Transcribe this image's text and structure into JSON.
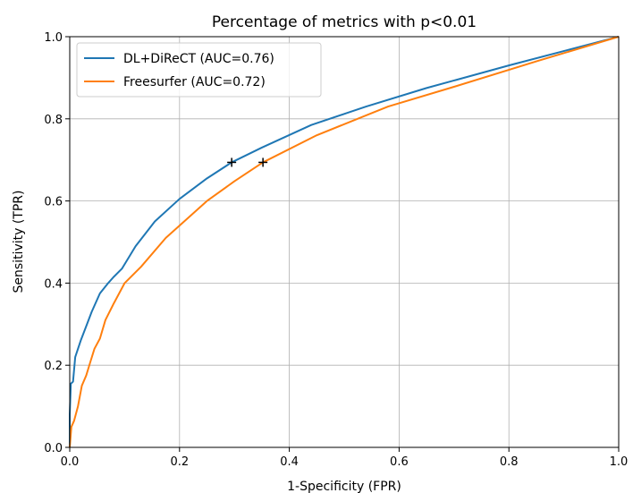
{
  "chart_data": {
    "type": "line",
    "title": "Percentage of metrics with p<0.01",
    "xlabel": "1-Specificity (FPR)",
    "ylabel": "Sensitivity (TPR)",
    "xlim": [
      0,
      1
    ],
    "ylim": [
      0,
      1
    ],
    "grid": true,
    "legend_position": "top-left",
    "x_ticks": [
      {
        "value": 0.0,
        "label": "0.0"
      },
      {
        "value": 0.2,
        "label": "0.2"
      },
      {
        "value": 0.4,
        "label": "0.4"
      },
      {
        "value": 0.6,
        "label": "0.6"
      },
      {
        "value": 0.8,
        "label": "0.8"
      },
      {
        "value": 1.0,
        "label": "1.0"
      }
    ],
    "y_ticks": [
      {
        "value": 0.0,
        "label": "0.0"
      },
      {
        "value": 0.2,
        "label": "0.2"
      },
      {
        "value": 0.4,
        "label": "0.4"
      },
      {
        "value": 0.6,
        "label": "0.6"
      },
      {
        "value": 0.8,
        "label": "0.8"
      },
      {
        "value": 1.0,
        "label": "1.0"
      }
    ],
    "series": [
      {
        "name": "DL+DiReCT (AUC=0.76)",
        "color": "#1f77b4",
        "points": [
          [
            0.0,
            0.0
          ],
          [
            0.0,
            0.08
          ],
          [
            0.002,
            0.155
          ],
          [
            0.006,
            0.16
          ],
          [
            0.01,
            0.22
          ],
          [
            0.02,
            0.26
          ],
          [
            0.03,
            0.295
          ],
          [
            0.04,
            0.33
          ],
          [
            0.055,
            0.375
          ],
          [
            0.07,
            0.4
          ],
          [
            0.08,
            0.415
          ],
          [
            0.095,
            0.435
          ],
          [
            0.12,
            0.49
          ],
          [
            0.155,
            0.55
          ],
          [
            0.2,
            0.605
          ],
          [
            0.25,
            0.655
          ],
          [
            0.295,
            0.694
          ],
          [
            0.35,
            0.73
          ],
          [
            0.44,
            0.785
          ],
          [
            0.54,
            0.83
          ],
          [
            0.65,
            0.875
          ],
          [
            0.8,
            0.93
          ],
          [
            0.9,
            0.965
          ],
          [
            1.0,
            1.0
          ]
        ]
      },
      {
        "name": "Freesurfer (AUC=0.72)",
        "color": "#ff7f0e",
        "points": [
          [
            0.0,
            0.0
          ],
          [
            0.003,
            0.05
          ],
          [
            0.008,
            0.065
          ],
          [
            0.015,
            0.1
          ],
          [
            0.022,
            0.15
          ],
          [
            0.03,
            0.175
          ],
          [
            0.038,
            0.21
          ],
          [
            0.045,
            0.24
          ],
          [
            0.055,
            0.265
          ],
          [
            0.065,
            0.31
          ],
          [
            0.08,
            0.35
          ],
          [
            0.1,
            0.4
          ],
          [
            0.13,
            0.44
          ],
          [
            0.175,
            0.51
          ],
          [
            0.25,
            0.6
          ],
          [
            0.3,
            0.648
          ],
          [
            0.352,
            0.694
          ],
          [
            0.45,
            0.76
          ],
          [
            0.58,
            0.83
          ],
          [
            0.7,
            0.878
          ],
          [
            0.85,
            0.94
          ],
          [
            1.0,
            1.0
          ]
        ]
      }
    ],
    "markers": [
      {
        "symbol": "+",
        "x": 0.295,
        "y": 0.694
      },
      {
        "symbol": "+",
        "x": 0.352,
        "y": 0.694
      }
    ]
  }
}
